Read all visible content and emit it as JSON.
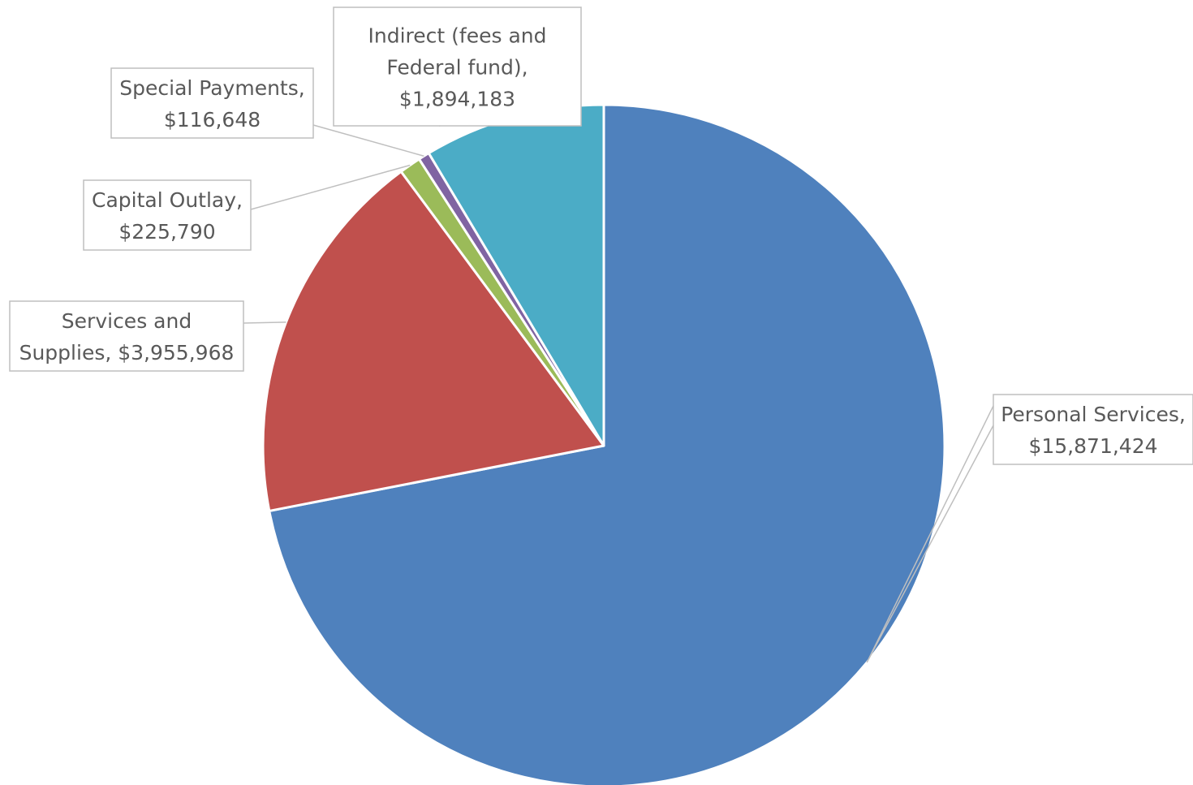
{
  "chart_data": {
    "type": "pie",
    "title": "",
    "categories": [
      "Personal Services",
      "Services and Supplies",
      "Capital Outlay",
      "Special Payments",
      "Indirect (fees and Federal fund)"
    ],
    "values": [
      15871424,
      3955968,
      225790,
      116648,
      1894183
    ],
    "colors": [
      "#4f81bd",
      "#c0504d",
      "#9bbb59",
      "#8064a2",
      "#4bacc6"
    ],
    "start_angle": "12 o'clock",
    "direction": "clockwise",
    "legend": "none",
    "data_labels": [
      {
        "lines": [
          "Personal Services,",
          "$15,871,424"
        ]
      },
      {
        "lines": [
          "Services and",
          "Supplies, $3,955,968"
        ]
      },
      {
        "lines": [
          "Capital Outlay,",
          "$225,790"
        ]
      },
      {
        "lines": [
          "Special Payments,",
          "$116,648"
        ]
      },
      {
        "lines": [
          "Indirect (fees and",
          "Federal fund),",
          "$1,894,183"
        ]
      }
    ]
  }
}
